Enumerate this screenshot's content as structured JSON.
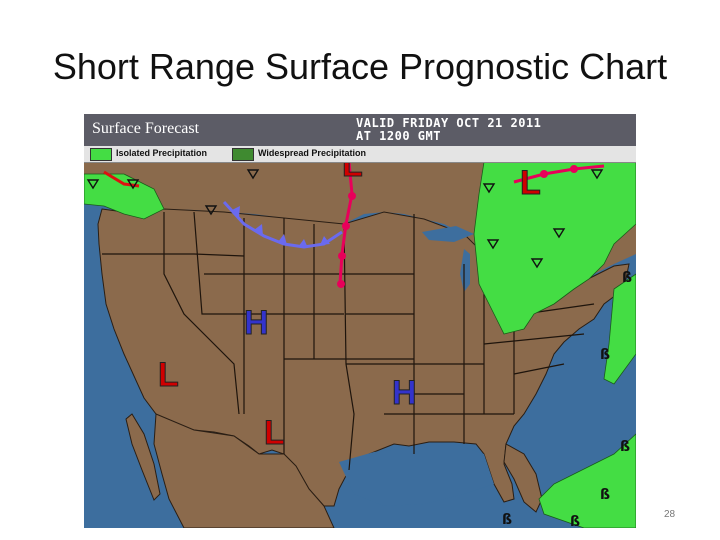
{
  "slide": {
    "title": "Short Range Surface Prognostic Chart",
    "page_number": "28"
  },
  "map": {
    "header_title": "Surface Forecast",
    "valid_line1": "VALID FRIDAY OCT 21  2011",
    "valid_line2": "AT 1200 GMT",
    "legend": [
      {
        "label": "Isolated Precipitation",
        "color": "#44dd44"
      },
      {
        "label": "Widespread Precipitation",
        "color": "#3f8a30"
      }
    ],
    "pressure_centers": [
      {
        "type": "L",
        "color": "#d00000"
      },
      {
        "type": "L",
        "color": "#d00000"
      },
      {
        "type": "L",
        "color": "#d00000"
      },
      {
        "type": "L",
        "color": "#d00000"
      },
      {
        "type": "H",
        "color": "#3333cc"
      },
      {
        "type": "H",
        "color": "#3333cc"
      }
    ],
    "colors": {
      "ocean": "#3d6e9e",
      "land": "#8b6a4c",
      "precip_isolated": "#44dd44",
      "front_cold": "#6a6aee",
      "front_warm": "#e8005a",
      "front_stationary_red": "#dd1111"
    }
  }
}
